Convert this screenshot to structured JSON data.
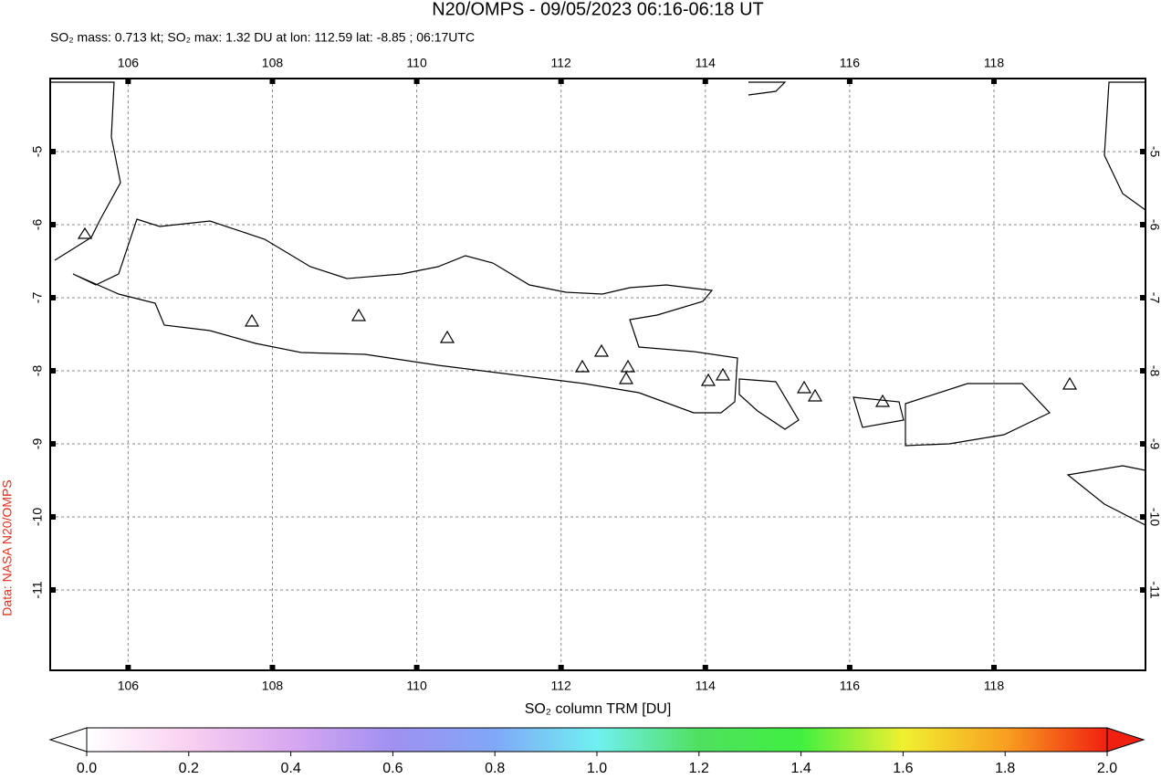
{
  "chart_data": {
    "type": "map",
    "title": "N20/OMPS - 09/05/2023 06:16-06:18 UT",
    "subtitle": "SO₂ mass: 0.713 kt; SO₂ max: 1.32 DU at lon: 112.59 lat: -8.85 ; 06:17UTC",
    "credit": "Data: NASA N20/OMPS",
    "xlim": [
      104.92,
      120.1
    ],
    "xticks": [
      106,
      108,
      110,
      112,
      114,
      116,
      118
    ],
    "ylim": [
      -12.1,
      -4.0
    ],
    "yticks": [
      -5,
      -6,
      -7,
      -8,
      -9,
      -10,
      -11
    ],
    "grid": true,
    "colorbar": {
      "label": "SO₂ column TRM [DU]",
      "range": [
        0,
        2
      ],
      "ticks": [
        {
          "value": 0,
          "label": "0.0"
        },
        {
          "value": 0.2,
          "label": "0.2"
        },
        {
          "value": 0.4,
          "label": "0.4"
        },
        {
          "value": 0.6,
          "label": "0.6"
        },
        {
          "value": 0.8,
          "label": "0.8"
        },
        {
          "value": 1,
          "label": "1.0"
        },
        {
          "value": 1.2,
          "label": "1.2"
        },
        {
          "value": 1.4,
          "label": "1.4"
        },
        {
          "value": 1.6,
          "label": "1.6"
        },
        {
          "value": 1.8,
          "label": "1.8"
        },
        {
          "value": 2,
          "label": "2.0"
        }
      ],
      "colors": [
        "#ffffff",
        "#f8d0f0",
        "#d8a8f0",
        "#a090f0",
        "#80a8f8",
        "#70f0f0",
        "#50e060",
        "#40f040",
        "#f0f030",
        "#f8a020",
        "#f02010"
      ]
    }
  }
}
